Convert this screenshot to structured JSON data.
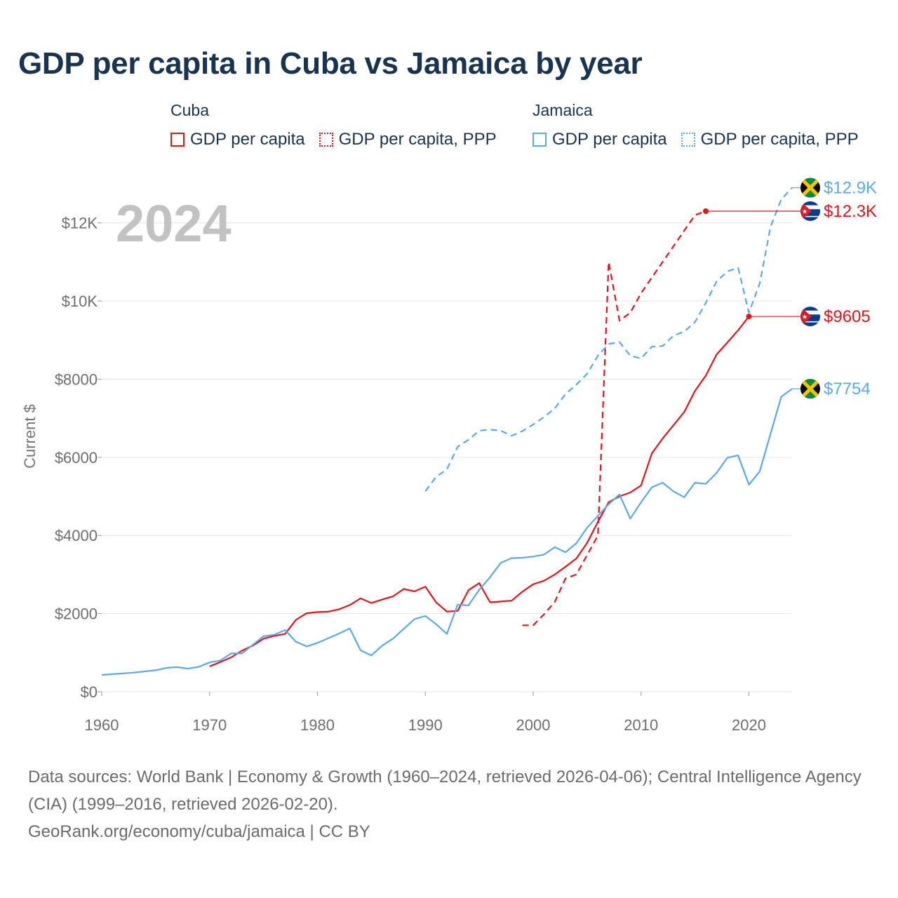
{
  "title": "GDP per capita in Cuba vs Jamaica by year",
  "legend": {
    "groups": [
      {
        "name": "Cuba",
        "items": [
          {
            "label": "GDP per capita",
            "style": "solid",
            "color": "#e8121b"
          },
          {
            "label": "GDP per capita, PPP",
            "style": "dotted",
            "color": "#e8121b"
          }
        ]
      },
      {
        "name": "Jamaica",
        "items": [
          {
            "label": "GDP per capita",
            "style": "solid",
            "color": "#5da8e6"
          },
          {
            "label": "GDP per capita, PPP",
            "style": "dotted",
            "color": "#5da8e6"
          }
        ]
      }
    ]
  },
  "year_label": "2024",
  "footer": {
    "sources": "Data sources: World Bank | Economy & Growth (1960–2024, retrieved 2026-04-06); Central Intelligence Agency (CIA) (1999–2016, retrieved 2026-02-20).",
    "credit": "GeoRank.org/economy/cuba/jamaica | CC BY"
  },
  "chart_data": {
    "type": "line",
    "title": "GDP per capita in Cuba vs Jamaica by year",
    "xlabel": "",
    "ylabel": "Current $",
    "xlim": [
      1960,
      2024
    ],
    "ylim": [
      0,
      13000
    ],
    "x_ticks": [
      1960,
      1970,
      1980,
      1990,
      2000,
      2010,
      2020
    ],
    "x_tick_labels": [
      "1960",
      "1970",
      "1980",
      "1990",
      "2000",
      "2010",
      "2020"
    ],
    "y_ticks": [
      0,
      2000,
      4000,
      6000,
      8000,
      10000,
      12000
    ],
    "y_tick_labels": [
      "$0",
      "$2000",
      "$4000",
      "$6000",
      "$8000",
      "$10K",
      "$12K"
    ],
    "grid": true,
    "series": [
      {
        "name": "Cuba GDP per capita",
        "country": "cuba",
        "style": "solid",
        "color": "#e8121b",
        "end_label": "$9605",
        "points": [
          [
            1970,
            650
          ],
          [
            1971,
            760
          ],
          [
            1972,
            880
          ],
          [
            1973,
            1050
          ],
          [
            1974,
            1180
          ],
          [
            1975,
            1360
          ],
          [
            1976,
            1430
          ],
          [
            1977,
            1480
          ],
          [
            1978,
            1840
          ],
          [
            1979,
            2010
          ],
          [
            1980,
            2040
          ],
          [
            1981,
            2050
          ],
          [
            1982,
            2110
          ],
          [
            1983,
            2220
          ],
          [
            1984,
            2390
          ],
          [
            1985,
            2270
          ],
          [
            1986,
            2360
          ],
          [
            1987,
            2440
          ],
          [
            1988,
            2630
          ],
          [
            1989,
            2570
          ],
          [
            1990,
            2690
          ],
          [
            1991,
            2290
          ],
          [
            1992,
            2050
          ],
          [
            1993,
            2070
          ],
          [
            1994,
            2600
          ],
          [
            1995,
            2780
          ],
          [
            1996,
            2290
          ],
          [
            1997,
            2310
          ],
          [
            1998,
            2330
          ],
          [
            1999,
            2560
          ],
          [
            2000,
            2750
          ],
          [
            2001,
            2840
          ],
          [
            2002,
            3000
          ],
          [
            2003,
            3200
          ],
          [
            2004,
            3410
          ],
          [
            2005,
            3810
          ],
          [
            2006,
            4350
          ],
          [
            2007,
            4850
          ],
          [
            2008,
            5000
          ],
          [
            2009,
            5100
          ],
          [
            2010,
            5280
          ],
          [
            2011,
            6100
          ],
          [
            2012,
            6480
          ],
          [
            2013,
            6820
          ],
          [
            2014,
            7160
          ],
          [
            2015,
            7700
          ],
          [
            2016,
            8090
          ],
          [
            2017,
            8630
          ],
          [
            2018,
            8940
          ],
          [
            2019,
            9250
          ],
          [
            2020,
            9605
          ]
        ]
      },
      {
        "name": "Cuba GDP per capita, PPP",
        "country": "cuba",
        "style": "dashed",
        "color": "#e8121b",
        "end_label": "$12.3K",
        "points": [
          [
            1999,
            1700
          ],
          [
            2000,
            1700
          ],
          [
            2001,
            1980
          ],
          [
            2002,
            2300
          ],
          [
            2003,
            2900
          ],
          [
            2004,
            3000
          ],
          [
            2005,
            3500
          ],
          [
            2006,
            4000
          ],
          [
            2007,
            11000
          ],
          [
            2008,
            9500
          ],
          [
            2009,
            9700
          ],
          [
            2010,
            10200
          ],
          [
            2011,
            10600
          ],
          [
            2012,
            11000
          ],
          [
            2013,
            11400
          ],
          [
            2014,
            11800
          ],
          [
            2015,
            12200
          ],
          [
            2016,
            12300
          ]
        ]
      },
      {
        "name": "Jamaica GDP per capita",
        "country": "jamaica",
        "style": "solid",
        "color": "#5da8e6",
        "end_label": "$7754",
        "points": [
          [
            1960,
            430
          ],
          [
            1961,
            450
          ],
          [
            1962,
            470
          ],
          [
            1963,
            490
          ],
          [
            1964,
            520
          ],
          [
            1965,
            550
          ],
          [
            1966,
            610
          ],
          [
            1967,
            630
          ],
          [
            1968,
            590
          ],
          [
            1969,
            640
          ],
          [
            1970,
            750
          ],
          [
            1971,
            800
          ],
          [
            1972,
            980
          ],
          [
            1973,
            980
          ],
          [
            1974,
            1200
          ],
          [
            1975,
            1420
          ],
          [
            1976,
            1460
          ],
          [
            1977,
            1580
          ],
          [
            1978,
            1280
          ],
          [
            1979,
            1160
          ],
          [
            1980,
            1250
          ],
          [
            1981,
            1370
          ],
          [
            1982,
            1490
          ],
          [
            1983,
            1620
          ],
          [
            1984,
            1060
          ],
          [
            1985,
            930
          ],
          [
            1986,
            1180
          ],
          [
            1987,
            1360
          ],
          [
            1988,
            1610
          ],
          [
            1989,
            1860
          ],
          [
            1990,
            1940
          ],
          [
            1991,
            1730
          ],
          [
            1992,
            1480
          ],
          [
            1993,
            2230
          ],
          [
            1994,
            2210
          ],
          [
            1995,
            2610
          ],
          [
            1996,
            2930
          ],
          [
            1997,
            3300
          ],
          [
            1998,
            3420
          ],
          [
            1999,
            3430
          ],
          [
            2000,
            3460
          ],
          [
            2001,
            3510
          ],
          [
            2002,
            3700
          ],
          [
            2003,
            3570
          ],
          [
            2004,
            3800
          ],
          [
            2005,
            4200
          ],
          [
            2006,
            4500
          ],
          [
            2007,
            4800
          ],
          [
            2008,
            5050
          ],
          [
            2009,
            4430
          ],
          [
            2010,
            4850
          ],
          [
            2011,
            5230
          ],
          [
            2012,
            5350
          ],
          [
            2013,
            5130
          ],
          [
            2014,
            4980
          ],
          [
            2015,
            5350
          ],
          [
            2016,
            5320
          ],
          [
            2017,
            5600
          ],
          [
            2018,
            5990
          ],
          [
            2019,
            6050
          ],
          [
            2020,
            5300
          ],
          [
            2021,
            5640
          ],
          [
            2022,
            6600
          ],
          [
            2023,
            7550
          ],
          [
            2024,
            7754
          ]
        ]
      },
      {
        "name": "Jamaica GDP per capita, PPP",
        "country": "jamaica",
        "style": "dashed",
        "color": "#5da8e6",
        "end_label": "$12.9K",
        "points": [
          [
            1990,
            5130
          ],
          [
            1991,
            5500
          ],
          [
            1992,
            5690
          ],
          [
            1993,
            6270
          ],
          [
            1994,
            6450
          ],
          [
            1995,
            6680
          ],
          [
            1996,
            6710
          ],
          [
            1997,
            6680
          ],
          [
            1998,
            6550
          ],
          [
            1999,
            6670
          ],
          [
            2000,
            6840
          ],
          [
            2001,
            7030
          ],
          [
            2002,
            7250
          ],
          [
            2003,
            7620
          ],
          [
            2004,
            7860
          ],
          [
            2005,
            8140
          ],
          [
            2006,
            8600
          ],
          [
            2007,
            8900
          ],
          [
            2008,
            8950
          ],
          [
            2009,
            8600
          ],
          [
            2010,
            8530
          ],
          [
            2011,
            8830
          ],
          [
            2012,
            8850
          ],
          [
            2013,
            9110
          ],
          [
            2014,
            9220
          ],
          [
            2015,
            9460
          ],
          [
            2016,
            9950
          ],
          [
            2017,
            10500
          ],
          [
            2018,
            10760
          ],
          [
            2019,
            10850
          ],
          [
            2020,
            9700
          ],
          [
            2021,
            10450
          ],
          [
            2022,
            11900
          ],
          [
            2023,
            12600
          ],
          [
            2024,
            12900
          ]
        ]
      }
    ]
  }
}
